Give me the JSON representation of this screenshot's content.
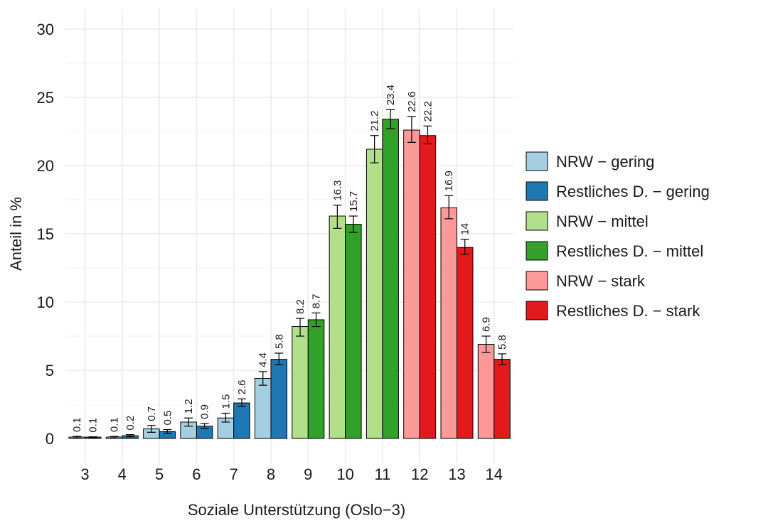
{
  "chart_data": {
    "type": "bar",
    "xlabel": "Soziale Unterstützung (Oslo−3)",
    "ylabel": "Anteil in %",
    "ylim": [
      0,
      30
    ],
    "yticks": [
      0,
      5,
      10,
      15,
      20,
      25,
      30
    ],
    "grid": true,
    "legend_position": "right",
    "categories": [
      "3",
      "4",
      "5",
      "6",
      "7",
      "8",
      "9",
      "10",
      "11",
      "12",
      "13",
      "14"
    ],
    "groups": [
      {
        "category": "3",
        "bars": [
          {
            "series": "NRW − gering",
            "value": 0.1,
            "label": "0.1",
            "err_low": 0.0,
            "err_high": 0.15
          },
          {
            "series": "Restliches D. − gering",
            "value": 0.1,
            "label": "0.1",
            "err_low": 0.05,
            "err_high": 0.12
          }
        ]
      },
      {
        "category": "4",
        "bars": [
          {
            "series": "NRW − gering",
            "value": 0.1,
            "label": "0.1",
            "err_low": 0.0,
            "err_high": 0.15
          },
          {
            "series": "Restliches D. − gering",
            "value": 0.2,
            "label": "0.2",
            "err_low": 0.12,
            "err_high": 0.28
          }
        ]
      },
      {
        "category": "5",
        "bars": [
          {
            "series": "NRW − gering",
            "value": 0.7,
            "label": "0.7",
            "err_low": 0.45,
            "err_high": 0.95
          },
          {
            "series": "Restliches D. − gering",
            "value": 0.5,
            "label": "0.5",
            "err_low": 0.38,
            "err_high": 0.65
          }
        ]
      },
      {
        "category": "6",
        "bars": [
          {
            "series": "NRW − gering",
            "value": 1.2,
            "label": "1.2",
            "err_low": 0.9,
            "err_high": 1.5
          },
          {
            "series": "Restliches D. − gering",
            "value": 0.9,
            "label": "0.9",
            "err_low": 0.75,
            "err_high": 1.1
          }
        ]
      },
      {
        "category": "7",
        "bars": [
          {
            "series": "NRW − gering",
            "value": 1.5,
            "label": "1.5",
            "err_low": 1.2,
            "err_high": 1.85
          },
          {
            "series": "Restliches D. − gering",
            "value": 2.6,
            "label": "2.6",
            "err_low": 2.35,
            "err_high": 2.9
          }
        ]
      },
      {
        "category": "8",
        "bars": [
          {
            "series": "NRW − gering",
            "value": 4.4,
            "label": "4.4",
            "err_low": 3.9,
            "err_high": 4.9
          },
          {
            "series": "Restliches D. − gering",
            "value": 5.8,
            "label": "5.8",
            "err_low": 5.4,
            "err_high": 6.25
          }
        ]
      },
      {
        "category": "9",
        "bars": [
          {
            "series": "NRW − mittel",
            "value": 8.2,
            "label": "8.2",
            "err_low": 7.5,
            "err_high": 8.8
          },
          {
            "series": "Restliches D. − mittel",
            "value": 8.7,
            "label": "8.7",
            "err_low": 8.2,
            "err_high": 9.2
          }
        ]
      },
      {
        "category": "10",
        "bars": [
          {
            "series": "NRW − mittel",
            "value": 16.3,
            "label": "16.3",
            "err_low": 15.4,
            "err_high": 17.1
          },
          {
            "series": "Restliches D. − mittel",
            "value": 15.7,
            "label": "15.7",
            "err_low": 15.1,
            "err_high": 16.3
          }
        ]
      },
      {
        "category": "11",
        "bars": [
          {
            "series": "NRW − mittel",
            "value": 21.2,
            "label": "21.2",
            "err_low": 20.2,
            "err_high": 22.2
          },
          {
            "series": "Restliches D. − mittel",
            "value": 23.4,
            "label": "23.4",
            "err_low": 22.7,
            "err_high": 24.1
          }
        ]
      },
      {
        "category": "12",
        "bars": [
          {
            "series": "NRW − stark",
            "value": 22.6,
            "label": "22.6",
            "err_low": 21.7,
            "err_high": 23.6
          },
          {
            "series": "Restliches D. − stark",
            "value": 22.2,
            "label": "22.2",
            "err_low": 21.6,
            "err_high": 22.9
          }
        ]
      },
      {
        "category": "13",
        "bars": [
          {
            "series": "NRW − stark",
            "value": 16.9,
            "label": "16.9",
            "err_low": 16.1,
            "err_high": 17.8
          },
          {
            "series": "Restliches D. − stark",
            "value": 14.0,
            "label": "14",
            "err_low": 13.5,
            "err_high": 14.6
          }
        ]
      },
      {
        "category": "14",
        "bars": [
          {
            "series": "NRW − stark",
            "value": 6.9,
            "label": "6.9",
            "err_low": 6.3,
            "err_high": 7.5
          },
          {
            "series": "Restliches D. − stark",
            "value": 5.8,
            "label": "5.8",
            "err_low": 5.4,
            "err_high": 6.2
          }
        ]
      }
    ],
    "legend": [
      {
        "name": "NRW − gering",
        "color": "#a6cee3"
      },
      {
        "name": "Restliches D. − gering",
        "color": "#1f78b4"
      },
      {
        "name": "NRW − mittel",
        "color": "#b2df8a"
      },
      {
        "name": "Restliches D. − mittel",
        "color": "#33a02c"
      },
      {
        "name": "NRW − stark",
        "color": "#fb9a99"
      },
      {
        "name": "Restliches D. − stark",
        "color": "#e31a1c"
      }
    ]
  }
}
